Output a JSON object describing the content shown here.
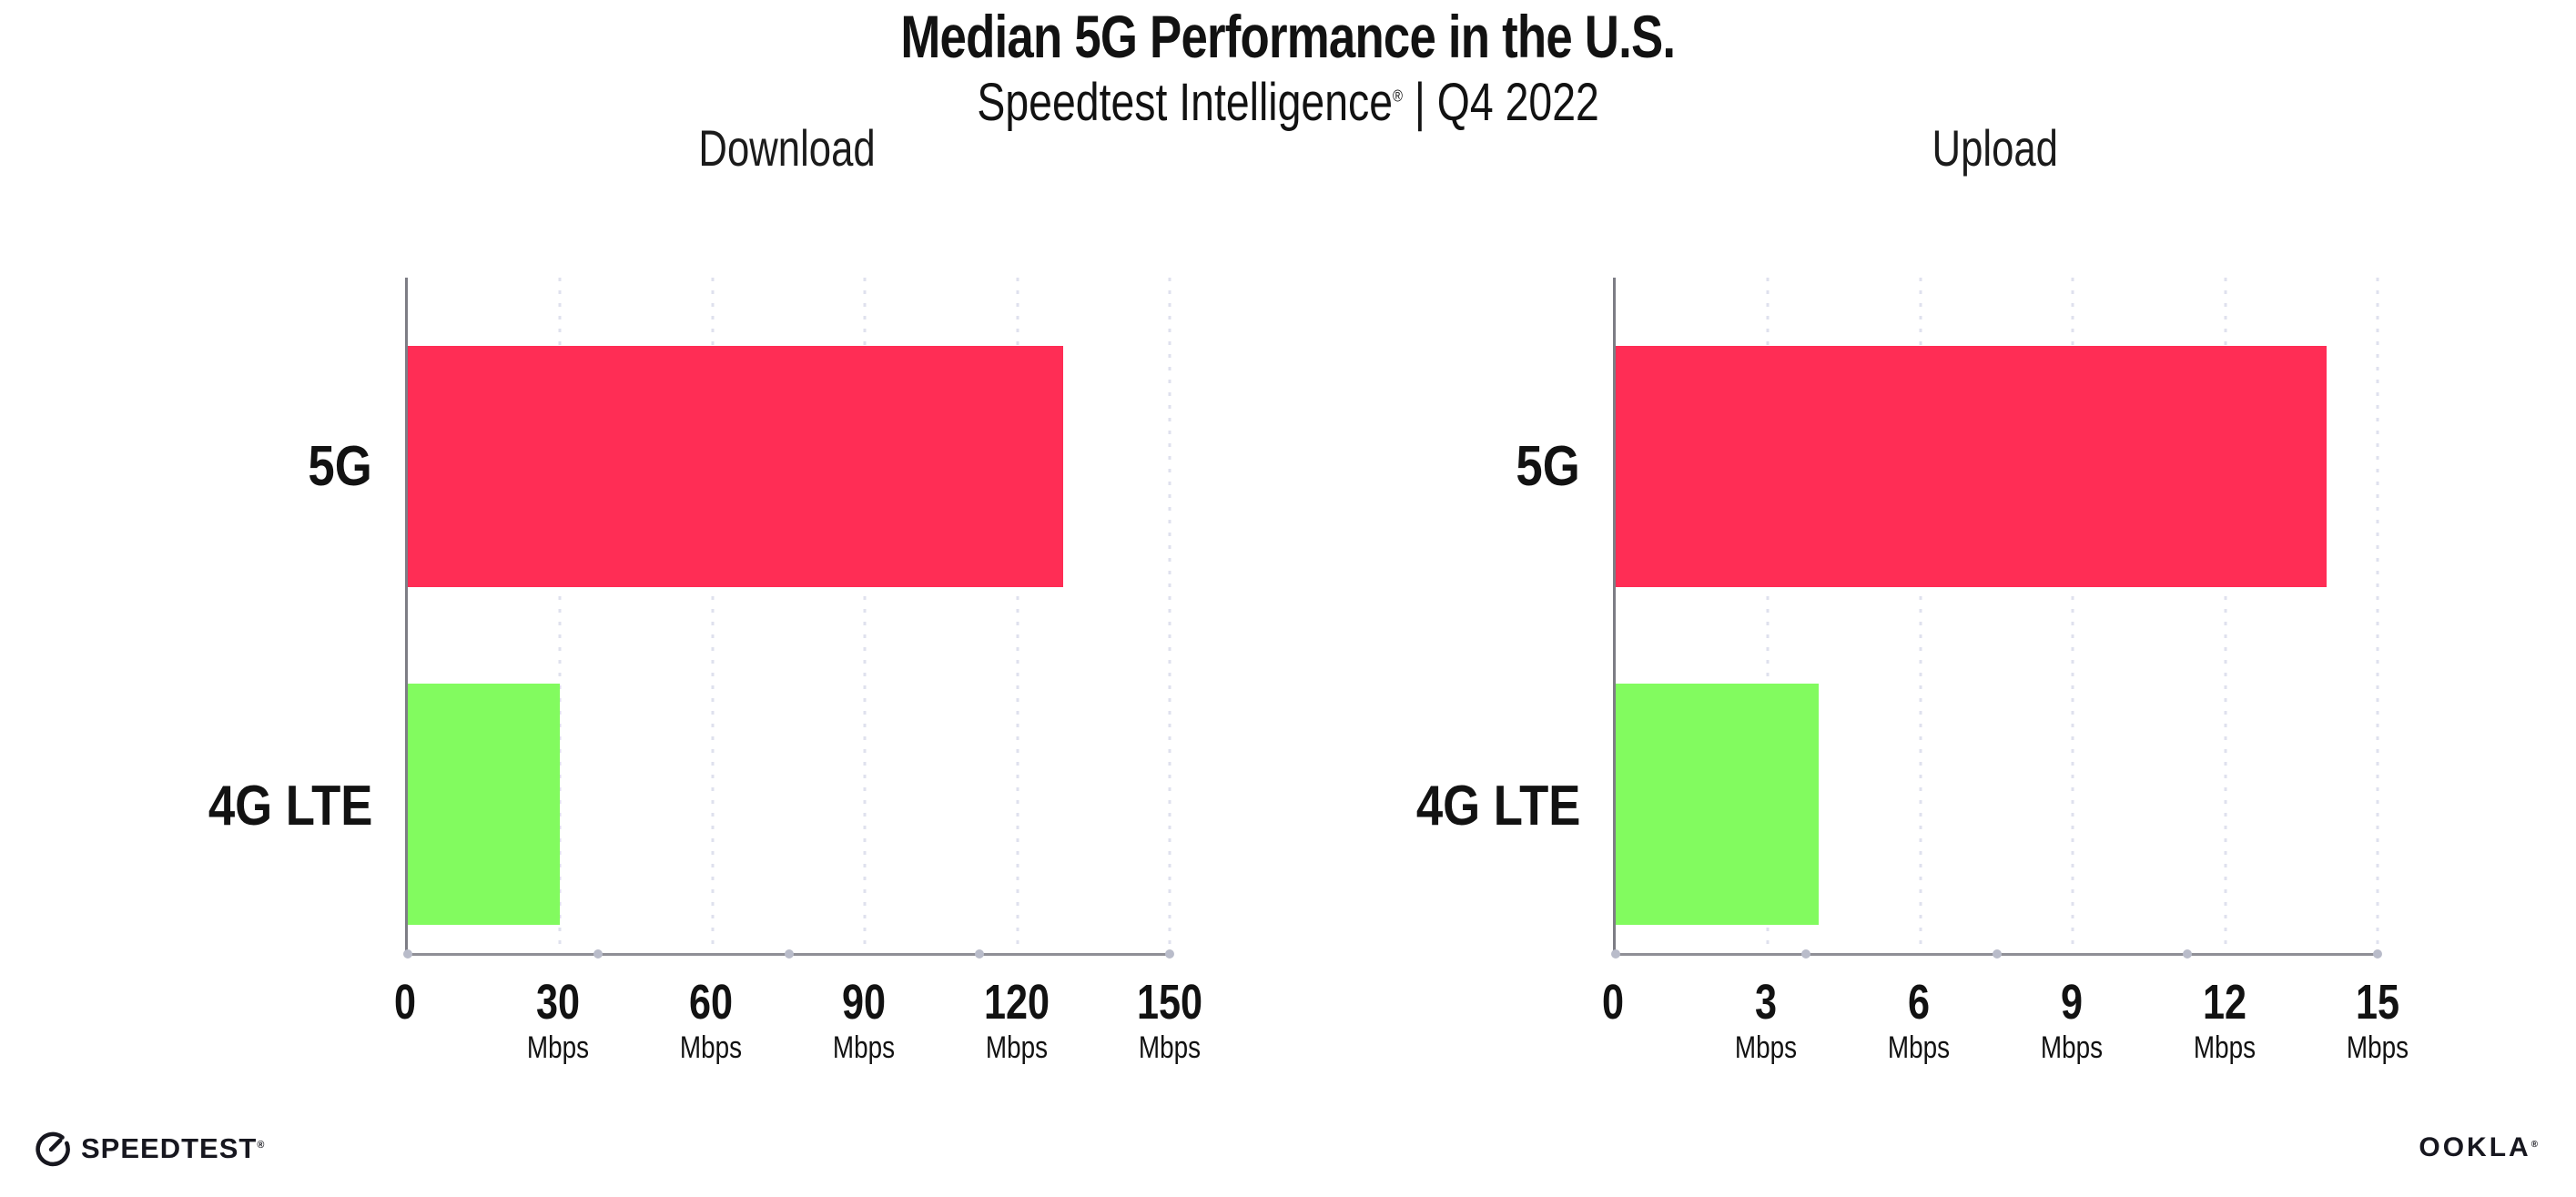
{
  "header": {
    "title": "Median 5G Performance in the U.S.",
    "subtitle_brand": "Speedtest Intelligence",
    "subtitle_reg": "®",
    "subtitle_rest": " | Q4 2022"
  },
  "chart_data": [
    {
      "type": "bar",
      "orientation": "horizontal",
      "title": "Download",
      "categories": [
        "5G",
        "4G LTE"
      ],
      "values": [
        129,
        30
      ],
      "unit": "Mbps",
      "xlabel": "",
      "ylabel": "",
      "xlim": [
        0,
        150
      ],
      "xticks": [
        0,
        30,
        60,
        90,
        120,
        150
      ],
      "bar_colors": [
        "#ff2d55",
        "#82fb5f"
      ],
      "grid": "dotted vertical gridlines at each tick",
      "legend_position": "none"
    },
    {
      "type": "bar",
      "orientation": "horizontal",
      "title": "Upload",
      "categories": [
        "5G",
        "4G LTE"
      ],
      "values": [
        14,
        4
      ],
      "unit": "Mbps",
      "xlabel": "",
      "ylabel": "",
      "xlim": [
        0,
        15
      ],
      "xticks": [
        0,
        3,
        6,
        9,
        12,
        15
      ],
      "bar_colors": [
        "#ff2d55",
        "#82fb5f"
      ],
      "grid": "dotted vertical gridlines at each tick",
      "legend_position": "none"
    }
  ],
  "colors": {
    "bar_5g": "#ff2d55",
    "bar_4g_lte": "#82fb5f",
    "gridline": "#dfe1ee",
    "axis": "#8f8f96",
    "text": "#121212"
  },
  "footer": {
    "speedtest_label": "SPEEDTEST",
    "speedtest_reg": "®",
    "ookla_label": "OOKLA",
    "ookla_reg": "®"
  }
}
